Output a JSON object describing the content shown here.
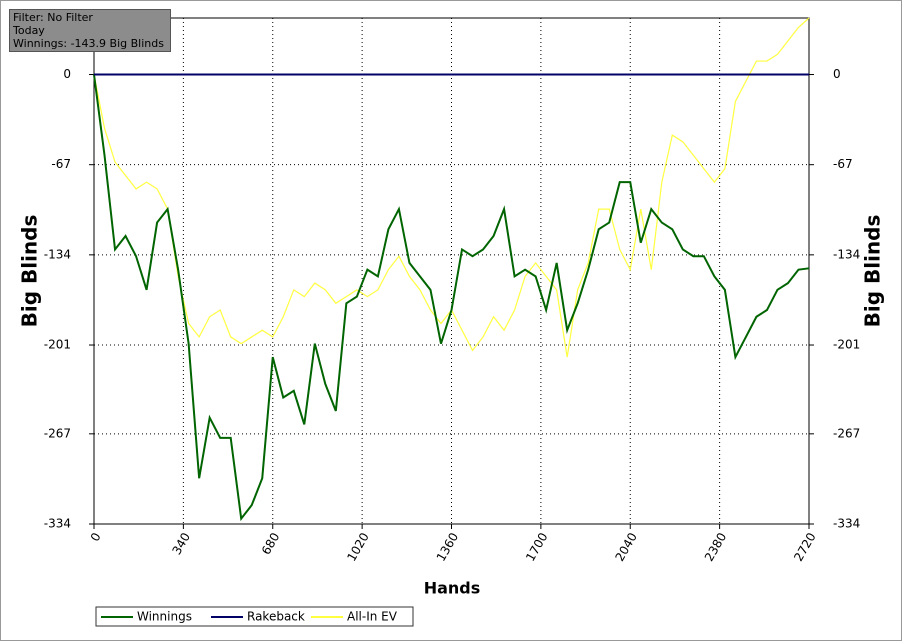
{
  "chart_data": {
    "type": "line",
    "info_box": [
      "Filter: No Filter",
      "Today",
      "Winnings: -143.9 Big Blinds"
    ],
    "xlabel": "Hands",
    "ylabel": "Big Blinds",
    "x": [
      0,
      40,
      80,
      120,
      160,
      200,
      240,
      280,
      320,
      360,
      400,
      440,
      480,
      520,
      560,
      600,
      640,
      680,
      720,
      760,
      800,
      840,
      880,
      920,
      960,
      1000,
      1040,
      1080,
      1120,
      1160,
      1200,
      1240,
      1280,
      1320,
      1360,
      1400,
      1440,
      1480,
      1520,
      1560,
      1600,
      1640,
      1680,
      1720,
      1760,
      1800,
      1840,
      1880,
      1920,
      1960,
      2000,
      2040,
      2080,
      2120,
      2160,
      2200,
      2240,
      2280,
      2320,
      2360,
      2400,
      2440,
      2480,
      2520,
      2560,
      2600,
      2640,
      2680,
      2720
    ],
    "series": [
      {
        "name": "Winnings",
        "color": "#006400",
        "values": [
          0,
          -60,
          -130,
          -120,
          -135,
          -160,
          -110,
          -100,
          -145,
          -200,
          -300,
          -255,
          -270,
          -270,
          -330,
          -320,
          -300,
          -210,
          -240,
          -235,
          -260,
          -200,
          -230,
          -250,
          -170,
          -165,
          -145,
          -150,
          -115,
          -100,
          -140,
          -150,
          -160,
          -200,
          -175,
          -130,
          -135,
          -130,
          -120,
          -100,
          -150,
          -145,
          -150,
          -175,
          -140,
          -190,
          -170,
          -145,
          -115,
          -110,
          -80,
          -80,
          -125,
          -100,
          -110,
          -115,
          -130,
          -135,
          -135,
          -150,
          -160,
          -210,
          -195,
          -180,
          -175,
          -160,
          -155,
          -145,
          -144
        ]
      },
      {
        "name": "Rakeback",
        "color": "#000066",
        "values": [
          0,
          0,
          0,
          0,
          0,
          0,
          0,
          0,
          0,
          0,
          0,
          0,
          0,
          0,
          0,
          0,
          0,
          0,
          0,
          0,
          0,
          0,
          0,
          0,
          0,
          0,
          0,
          0,
          0,
          0,
          0,
          0,
          0,
          0,
          0,
          0,
          0,
          0,
          0,
          0,
          0,
          0,
          0,
          0,
          0,
          0,
          0,
          0,
          0,
          0,
          0,
          0,
          0,
          0,
          0,
          0,
          0,
          0,
          0,
          0,
          0,
          0,
          0,
          0,
          0,
          0,
          0,
          0,
          0
        ]
      },
      {
        "name": "All-In EV",
        "color": "#ffff40",
        "values": [
          0,
          -40,
          -65,
          -75,
          -85,
          -80,
          -85,
          -100,
          -150,
          -185,
          -195,
          -180,
          -175,
          -195,
          -200,
          -195,
          -190,
          -195,
          -180,
          -160,
          -165,
          -155,
          -160,
          -170,
          -165,
          -160,
          -165,
          -160,
          -145,
          -135,
          -150,
          -160,
          -175,
          -185,
          -175,
          -190,
          -205,
          -195,
          -180,
          -190,
          -175,
          -150,
          -140,
          -150,
          -160,
          -210,
          -160,
          -140,
          -100,
          -100,
          -130,
          -145,
          -100,
          -145,
          -80,
          -45,
          -50,
          -60,
          -70,
          -80,
          -70,
          -20,
          -5,
          10,
          10,
          15,
          25,
          35,
          42
        ]
      }
    ],
    "xlim": [
      0,
      2720
    ],
    "xticks": [
      0,
      340,
      680,
      1020,
      1360,
      1700,
      2040,
      2380,
      2720
    ],
    "ylim": [
      -334,
      42
    ],
    "yticks": [
      0,
      -67,
      -134,
      -201,
      -267,
      -334
    ],
    "grid": true
  }
}
